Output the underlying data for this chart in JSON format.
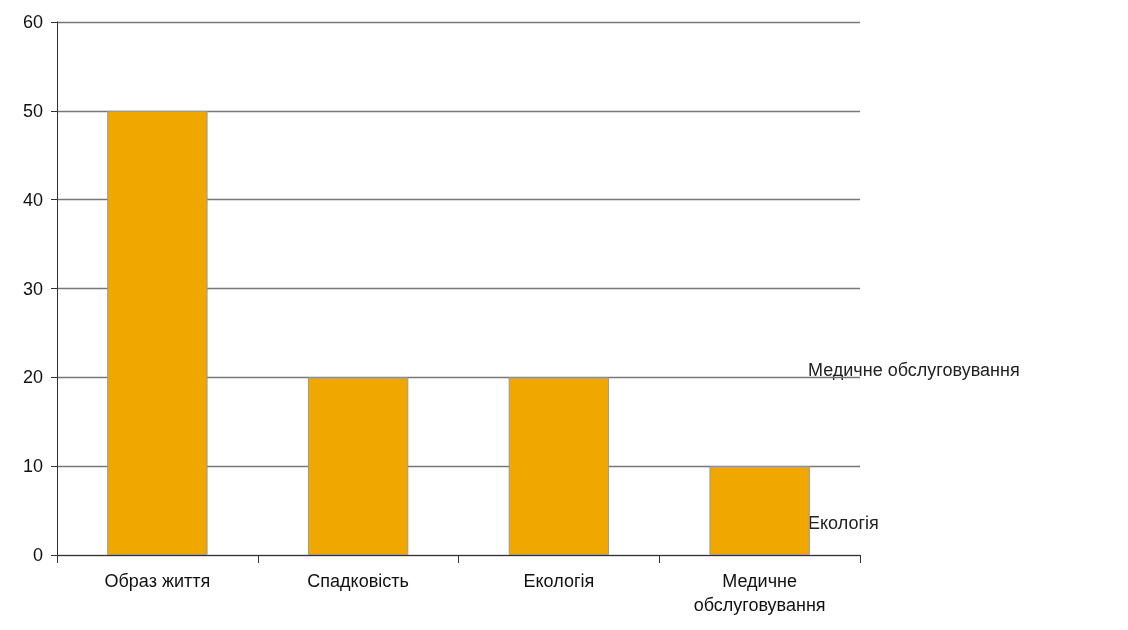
{
  "chart_data": {
    "type": "bar",
    "categories": [
      "Образ життя",
      "Спадковість",
      "Екологія",
      "Медичне обслуговування"
    ],
    "values": [
      50,
      20,
      20,
      10
    ],
    "color": "#f0a800",
    "ylim": [
      0,
      60
    ],
    "yticks": [
      0,
      10,
      20,
      30,
      40,
      50,
      60
    ],
    "grid": "y",
    "annotations": [
      "Медичне обслуговування",
      "Екологія"
    ]
  }
}
